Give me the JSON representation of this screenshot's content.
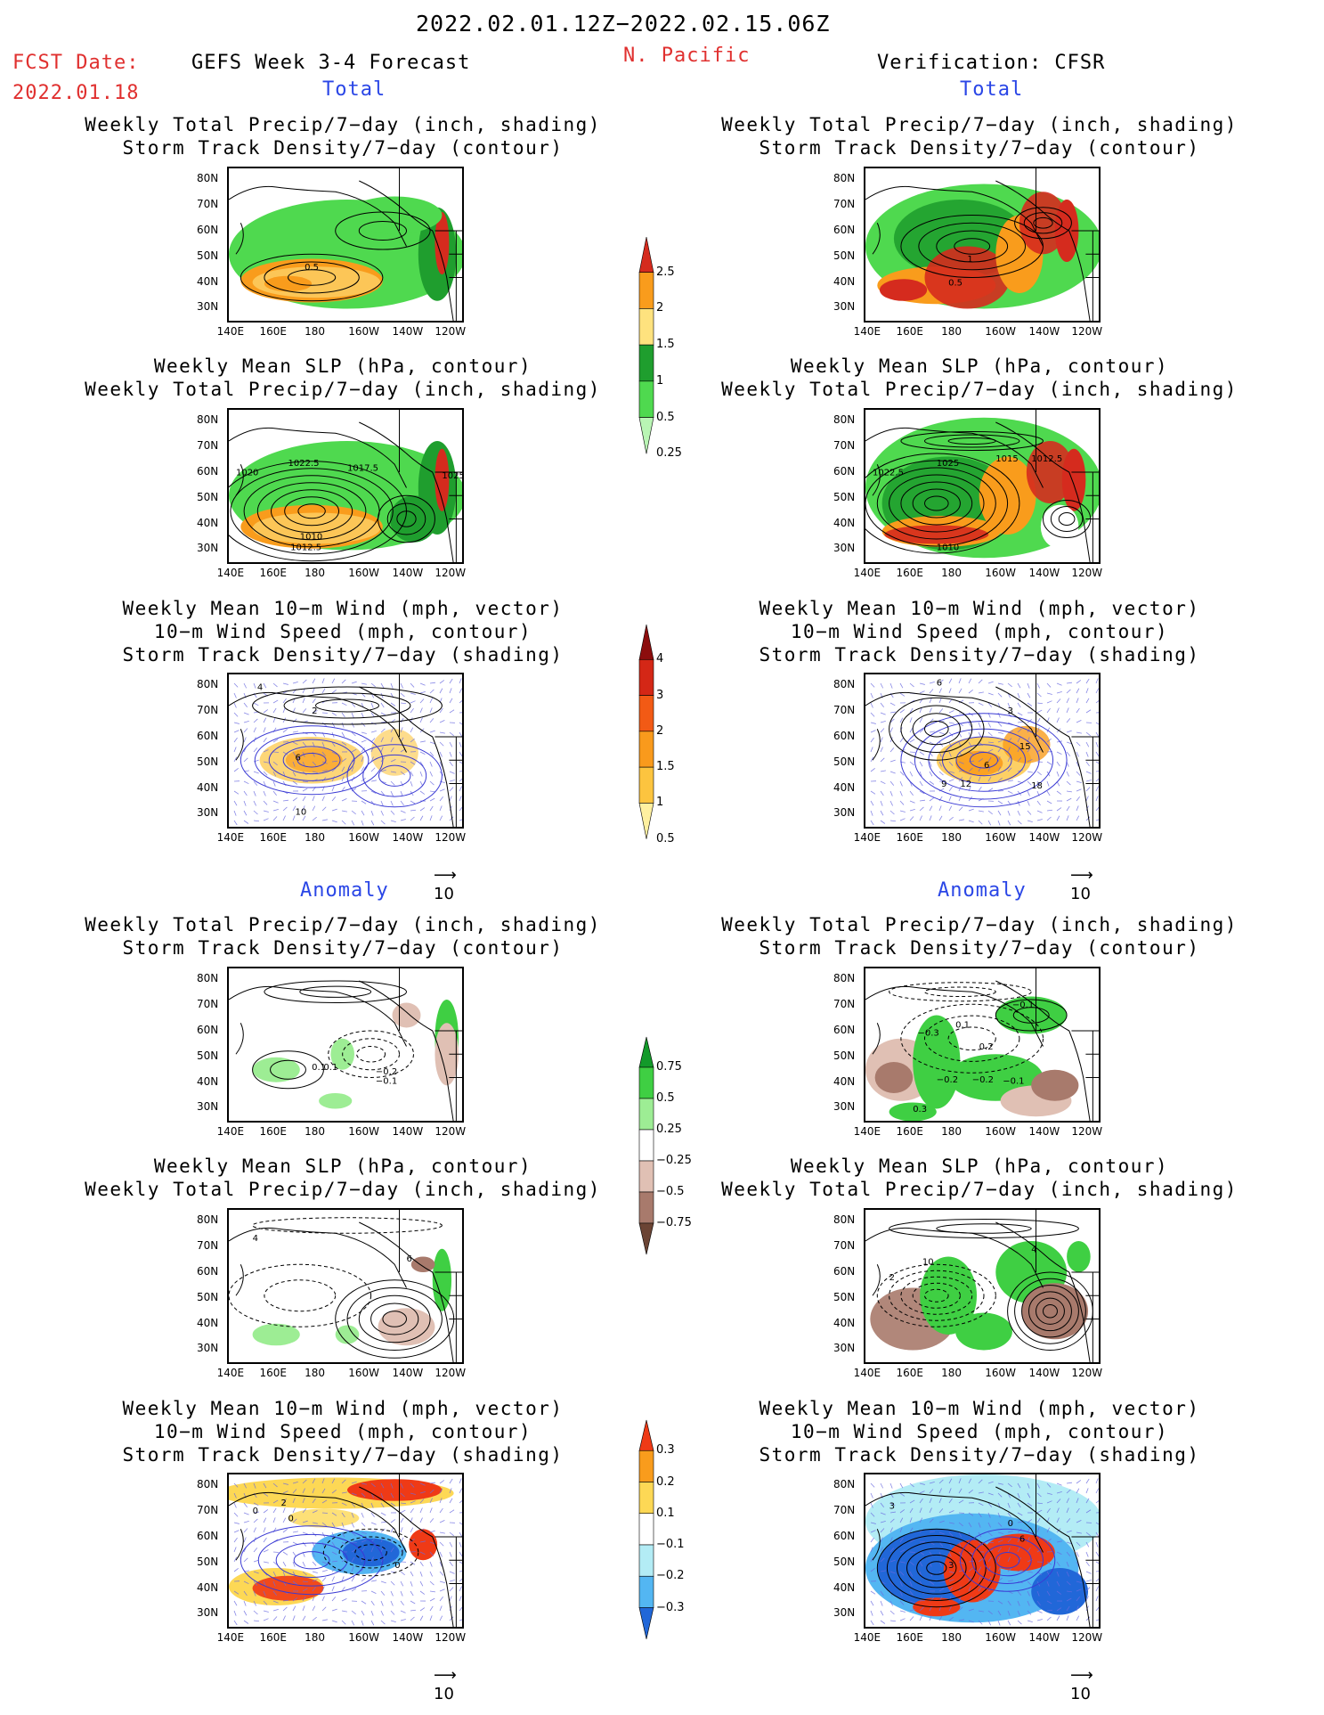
{
  "header": {
    "date_range": "2022.02.01.12Z−2022.02.15.06Z",
    "fcst_label": "FCST Date:",
    "fcst_date": "2022.01.18",
    "forecast_title": "GEFS Week 3-4 Forecast",
    "region": "N. Pacific",
    "verification": "Verification: CFSR"
  },
  "sections": {
    "total_left": "Total",
    "total_right": "Total",
    "anomaly_left": "Anomaly",
    "anomaly_right": "Anomaly"
  },
  "vector_ref": [
    "10",
    "10",
    "10",
    "10"
  ],
  "panel_titles": {
    "p1": [
      "Weekly Total Precip/7−day (inch, shading)",
      "Storm Track Density/7−day (contour)"
    ],
    "p2": [
      "Weekly Mean SLP (hPa, contour)",
      "Weekly Total Precip/7−day (inch, shading)"
    ],
    "p3": [
      "Weekly Mean 10−m Wind (mph, vector)",
      "10−m Wind Speed (mph, contour)",
      "Storm Track Density/7−day (shading)"
    ]
  },
  "axes": {
    "lat_labels": [
      "80N",
      "70N",
      "60N",
      "50N",
      "40N",
      "30N"
    ],
    "lon_labels": [
      "140E",
      "160E",
      "180",
      "160W",
      "140W",
      "120W"
    ]
  },
  "colorbars": [
    {
      "id": "precip_total",
      "levels": [
        "2.5",
        "2",
        "1.5",
        "1",
        "0.5",
        "0.25"
      ],
      "colors": [
        "#d52b1e",
        "#f99c1c",
        "#fee27e",
        "#1f9e2e",
        "#4fd94f",
        "#b9f5b4"
      ]
    },
    {
      "id": "stdens_total",
      "levels": [
        "4",
        "3",
        "2",
        "1.5",
        "1",
        "0.5"
      ],
      "colors": [
        "#8c0d0d",
        "#d42716",
        "#f25a15",
        "#f99a1c",
        "#fcc43f",
        "#fff0a0"
      ]
    },
    {
      "id": "precip_anom",
      "levels": [
        "0.75",
        "0.5",
        "0.25",
        "−0.25",
        "−0.5",
        "−0.75"
      ],
      "colors": [
        "#139a2a",
        "#3fcf43",
        "#9ded94",
        "#ffffff",
        "#e0c0b4",
        "#a87a6c",
        "#6b4434"
      ]
    },
    {
      "id": "stdens_anom",
      "levels": [
        "0.3",
        "0.2",
        "0.1",
        "−0.1",
        "−0.2",
        "−0.3"
      ],
      "colors": [
        "#ef3a16",
        "#f99c1c",
        "#fdd855",
        "#ffffff",
        "#b3ecf5",
        "#53b6f2",
        "#2167d8"
      ]
    }
  ],
  "panel_labels": {
    "L1": [
      "0.5"
    ],
    "R1": [
      "1",
      "0.5"
    ],
    "L2": [
      "1020",
      "1022.5",
      "1017.5",
      "1025",
      "1010",
      "1012.5"
    ],
    "R2": [
      "1022.5",
      "1025",
      "1015",
      "1012.5",
      "1010"
    ],
    "L3": [
      "4",
      "2",
      "6",
      "10"
    ],
    "R3": [
      "6",
      "3",
      "15",
      "18",
      "9",
      "12",
      "6"
    ],
    "L4": [
      "0.1",
      "0.1",
      "−0.2",
      "−0.1"
    ],
    "R4": [
      "−0.1",
      "−0.3",
      "0.1",
      "0.2",
      "−0.2",
      "−0.2",
      "−0.1",
      "0.3"
    ],
    "L5": [
      "4",
      "6"
    ],
    "R5": [
      "10",
      "2",
      "4"
    ],
    "L6": [
      "0",
      "2",
      "0",
      "0"
    ],
    "R6": [
      "3",
      "0",
      "6",
      "3"
    ]
  }
}
